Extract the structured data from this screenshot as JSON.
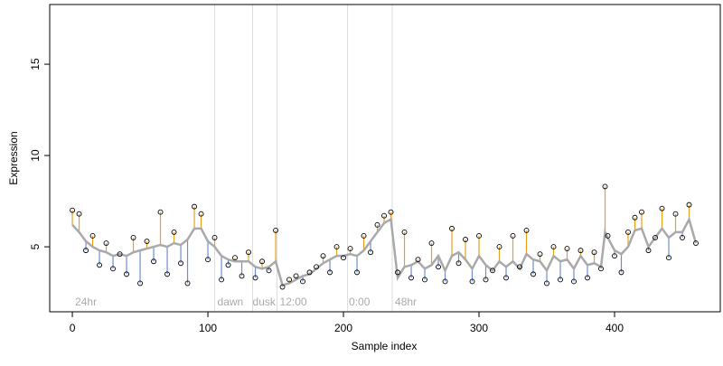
{
  "chart_data": {
    "type": "scatter",
    "xlabel": "Sample index",
    "ylabel": "Expression",
    "xlim": [
      -16.7,
      478
    ],
    "ylim": [
      1.44,
      18.27
    ],
    "xticks": [
      0,
      100,
      200,
      300,
      400
    ],
    "yticks": [
      5,
      10,
      15
    ],
    "x": [
      0,
      5,
      10,
      15,
      20,
      25,
      30,
      35,
      40,
      45,
      50,
      55,
      60,
      65,
      70,
      75,
      80,
      85,
      90,
      95,
      100,
      105,
      110,
      115,
      120,
      125,
      130,
      135,
      140,
      145,
      150,
      155,
      160,
      165,
      170,
      175,
      180,
      185,
      190,
      195,
      200,
      205,
      210,
      215,
      220,
      225,
      230,
      235,
      240,
      245,
      250,
      255,
      260,
      265,
      270,
      275,
      280,
      285,
      290,
      295,
      300,
      305,
      310,
      315,
      320,
      325,
      330,
      335,
      340,
      345,
      350,
      355,
      360,
      365,
      370,
      375,
      380,
      385,
      390,
      393,
      395,
      400,
      405,
      410,
      415,
      420,
      425,
      430,
      435,
      440,
      445,
      450,
      455,
      460
    ],
    "values": [
      7.0,
      6.8,
      4.8,
      5.6,
      4.0,
      5.2,
      3.8,
      4.6,
      3.5,
      5.5,
      3.0,
      5.3,
      4.2,
      6.9,
      3.5,
      5.8,
      4.1,
      3.0,
      7.2,
      6.8,
      4.3,
      5.5,
      3.2,
      4.0,
      4.4,
      3.4,
      4.7,
      3.3,
      4.2,
      3.7,
      5.9,
      2.8,
      3.2,
      3.4,
      3.1,
      3.6,
      3.9,
      4.5,
      3.6,
      5.0,
      4.4,
      4.9,
      3.6,
      5.6,
      4.7,
      6.2,
      6.7,
      6.9,
      3.6,
      5.8,
      3.3,
      4.3,
      3.2,
      5.2,
      3.9,
      3.1,
      6.0,
      4.1,
      5.4,
      3.1,
      5.6,
      3.2,
      3.7,
      5.0,
      3.3,
      5.6,
      3.9,
      5.9,
      3.5,
      4.6,
      3.0,
      5.0,
      3.2,
      4.9,
      3.1,
      4.8,
      3.3,
      4.7,
      3.8,
      8.3,
      5.6,
      4.5,
      3.6,
      5.8,
      6.6,
      6.9,
      4.8,
      5.5,
      7.1,
      4.4,
      6.8,
      5.5,
      7.3,
      5.2
    ],
    "fitted": [
      6.2,
      5.8,
      5.3,
      5.0,
      4.8,
      4.7,
      4.5,
      4.6,
      4.5,
      4.7,
      4.8,
      4.9,
      5.0,
      5.1,
      5.0,
      5.2,
      5.1,
      5.4,
      6.0,
      6.0,
      5.3,
      5.0,
      4.5,
      4.3,
      4.2,
      4.2,
      4.2,
      3.9,
      3.8,
      3.9,
      4.2,
      2.9,
      3.0,
      3.2,
      3.4,
      3.5,
      3.8,
      4.1,
      4.3,
      4.5,
      4.5,
      4.6,
      4.5,
      4.8,
      5.3,
      5.8,
      6.3,
      6.5,
      3.3,
      3.9,
      4.0,
      4.2,
      3.8,
      4.0,
      4.5,
      3.7,
      4.5,
      4.7,
      4.3,
      3.8,
      4.5,
      4.0,
      3.7,
      4.2,
      3.9,
      4.2,
      3.8,
      4.6,
      4.3,
      4.2,
      3.7,
      4.5,
      4.2,
      4.3,
      3.8,
      4.5,
      4.0,
      4.1,
      3.9,
      5.8,
      5.5,
      4.8,
      4.6,
      5.0,
      5.9,
      6.0,
      5.0,
      5.5,
      6.0,
      5.5,
      5.8,
      5.8,
      6.5,
      5.2
    ],
    "fit_color": "#a9a9a9",
    "above_color": "#e8a020",
    "below_color": "#6a8fd8",
    "vlines": [
      105,
      133,
      151,
      203,
      236
    ],
    "annotations": [
      {
        "x": 2,
        "label": "24hr"
      },
      {
        "x": 107,
        "label": "dawn"
      },
      {
        "x": 133,
        "label": "dusk"
      },
      {
        "x": 153,
        "label": "12:00"
      },
      {
        "x": 204,
        "label": "0:00"
      },
      {
        "x": 238,
        "label": "48hr"
      }
    ]
  }
}
